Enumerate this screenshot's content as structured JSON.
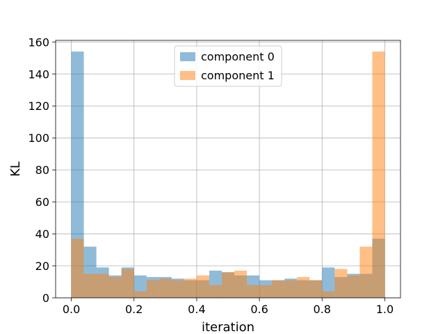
{
  "chart_data": {
    "type": "histogram",
    "title": "",
    "xlabel": "iteration",
    "ylabel": "KL",
    "xlim": [
      -0.05,
      1.05
    ],
    "ylim": [
      0,
      161
    ],
    "xticks": [
      0.0,
      0.2,
      0.4,
      0.6,
      0.8,
      1.0
    ],
    "xtick_labels": [
      "0.0",
      "0.2",
      "0.4",
      "0.6",
      "0.8",
      "1.0"
    ],
    "yticks": [
      0,
      20,
      40,
      60,
      80,
      100,
      120,
      140,
      160
    ],
    "ytick_labels": [
      "0",
      "20",
      "40",
      "60",
      "80",
      "100",
      "120",
      "140",
      "160"
    ],
    "grid": true,
    "legend_position": "top-center",
    "bins": 25,
    "bin_range": [
      0.0,
      1.0
    ],
    "series": [
      {
        "name": "component 0",
        "color": "#1f77b4",
        "alpha": 0.5,
        "values": [
          154,
          32,
          19,
          14,
          19,
          14,
          13,
          13,
          12,
          11,
          11,
          17,
          16,
          14,
          14,
          11,
          11,
          12,
          11,
          11,
          19,
          13,
          15,
          15,
          37
        ]
      },
      {
        "name": "component 1",
        "color": "#ff7f0e",
        "alpha": 0.5,
        "values": [
          37,
          15,
          15,
          13,
          18,
          4,
          11,
          12,
          11,
          12,
          14,
          8,
          16,
          17,
          8,
          8,
          11,
          11,
          13,
          11,
          4,
          18,
          14,
          32,
          154
        ]
      }
    ]
  }
}
